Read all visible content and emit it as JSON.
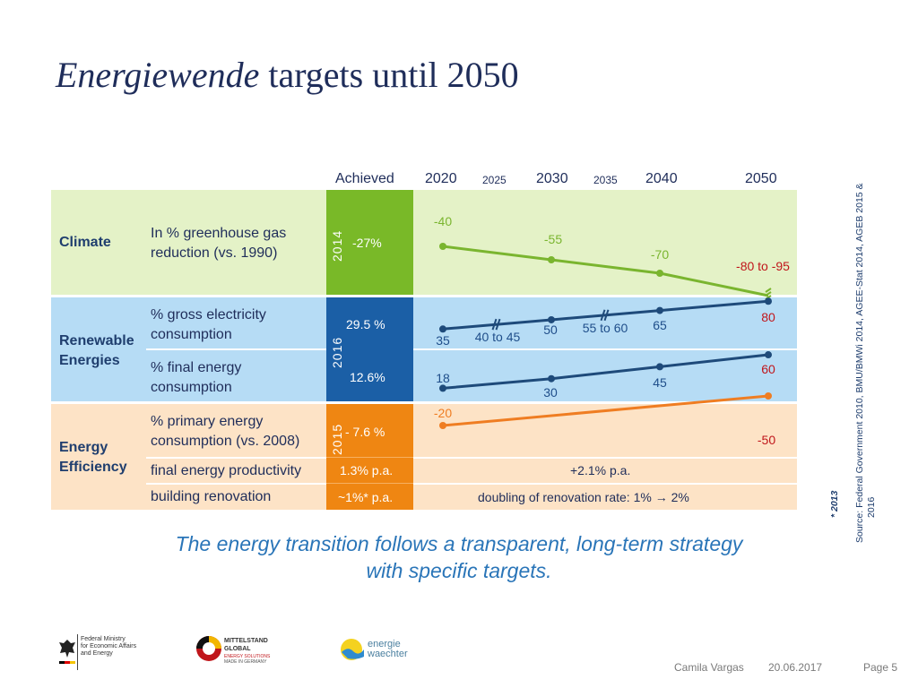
{
  "slide": {
    "title_italic": "Energiewende",
    "title_rest": " targets until 2050",
    "subtitle_line1": "The energy transition follows a transparent, long-term strategy",
    "subtitle_line2": "with specific targets.",
    "source": "Source: Federal Government 2010, BMU/BMWi 2014, AGEE-Stat 2014, AGEB 2015 &",
    "source_line2": "2016",
    "footnote": "* 2013",
    "footer": {
      "author": "Camila Vargas",
      "date": "20.06.2017",
      "page": "Page 5"
    },
    "logos": {
      "ministry": "Federal Ministry\nfor Economic Affairs\nand Energy",
      "mittelstand_title": "MITTELSTAND",
      "mittelstand_sub": "GLOBAL",
      "mittelstand_small1": "ENERGY SOLUTIONS",
      "mittelstand_small2": "MADE IN GERMANY",
      "energie_top": "energie",
      "energie_bottom": "waechter"
    }
  },
  "columns": {
    "achieved": "Achieved",
    "y2020": "2020",
    "y2025": "2025",
    "y2030": "2030",
    "y2035": "2035",
    "y2040": "2040",
    "y2050": "2050"
  },
  "categories": {
    "climate": "Climate",
    "renewable_1": "Renewable",
    "renewable_2": "Energies",
    "efficiency_1": "Energy",
    "efficiency_2": "Efficiency"
  },
  "rows": {
    "ghg_1": "In % greenhouse gas",
    "ghg_2": "reduction (vs. 1990)",
    "elec_1": "% gross electricity",
    "elec_2": "consumption",
    "final_1": "% final energy",
    "final_2": "consumption",
    "primary_1": "% primary energy",
    "primary_2": "consumption (vs. 2008)",
    "productivity": "final energy productivity",
    "renovation": "building renovation"
  },
  "achieved": {
    "climate_year": "2014",
    "climate_value": "-27%",
    "renewable_year": "2016",
    "elec_value": "29.5 %",
    "final_value": "12.6%",
    "efficiency_year": "2015",
    "primary_value": "- 7.6 %",
    "productivity_value": "1.3% p.a.",
    "renovation_value": "~1%* p.a."
  },
  "targets_text": {
    "productivity": "+2.1% p.a.",
    "renovation": "doubling of renovation rate: 1% → 2%"
  },
  "colors": {
    "climate_bg": "#e4f2c7",
    "renewable_bg": "#b6dcf5",
    "efficiency_bg": "#fde3c6",
    "climate_ach": "#79b928",
    "renewable_ach": "#1b5fa6",
    "efficiency_ach": "#ef8612",
    "green_line": "#7ab52f",
    "blue_line": "#1e4a7a",
    "orange_line": "#ef7d22",
    "red": "#c0161b"
  },
  "chart_data": {
    "type": "line",
    "x": [
      2020,
      2030,
      2040,
      2050
    ],
    "series": [
      {
        "values": [
          -40,
          -55,
          -70,
          -95
        ],
        "labels": [
          "-40",
          "-55",
          "-70",
          "-80 to -95"
        ]
      },
      {
        "values": [
          35,
          50,
          65,
          80
        ],
        "labels": [
          "35",
          "50",
          "65",
          "80"
        ],
        "range_labels": [
          "40 to 45",
          "55 to 60"
        ]
      },
      {
        "values": [
          18,
          30,
          45,
          60
        ],
        "labels": [
          "18",
          "30",
          "45",
          "60"
        ]
      },
      {
        "values": [
          -20,
          -50
        ],
        "x": [
          2020,
          2050
        ],
        "labels": [
          "-20",
          "-50"
        ]
      }
    ]
  }
}
